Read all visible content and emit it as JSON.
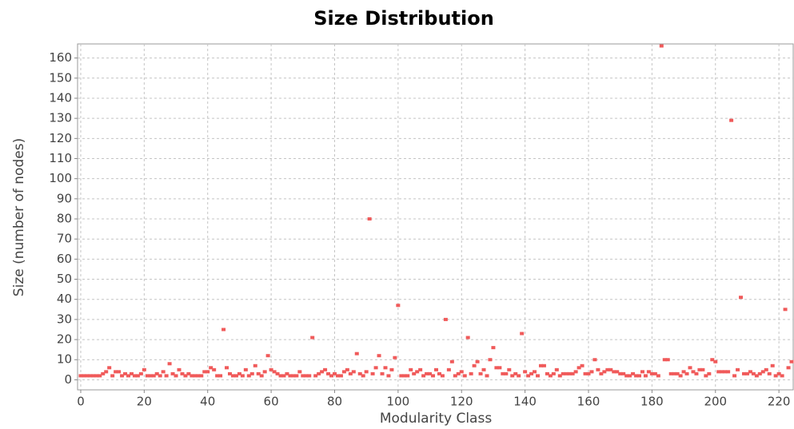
{
  "chart_data": {
    "type": "scatter",
    "title": "Size Distribution",
    "x_label": "Modularity Class",
    "y_label": "Size (number of nodes)",
    "xlim": [
      -1,
      224.5
    ],
    "ylim": [
      -5,
      167
    ],
    "xticks": [
      0,
      20,
      40,
      60,
      80,
      100,
      120,
      140,
      160,
      180,
      200,
      220
    ],
    "yticks": [
      0,
      10,
      20,
      30,
      40,
      50,
      60,
      70,
      80,
      90,
      100,
      110,
      120,
      130,
      140,
      150,
      160
    ],
    "grid": true,
    "color": "#f05a5a",
    "x": [
      0,
      1,
      2,
      3,
      4,
      5,
      6,
      7,
      8,
      9,
      10,
      11,
      12,
      13,
      14,
      15,
      16,
      17,
      18,
      19,
      20,
      21,
      22,
      23,
      24,
      25,
      26,
      27,
      28,
      29,
      30,
      31,
      32,
      33,
      34,
      35,
      36,
      37,
      38,
      39,
      40,
      41,
      42,
      43,
      44,
      45,
      46,
      47,
      48,
      49,
      50,
      51,
      52,
      53,
      54,
      55,
      56,
      57,
      58,
      59,
      60,
      61,
      62,
      63,
      64,
      65,
      66,
      67,
      68,
      69,
      70,
      71,
      72,
      73,
      74,
      75,
      76,
      77,
      78,
      79,
      80,
      81,
      82,
      83,
      84,
      85,
      86,
      87,
      88,
      89,
      90,
      91,
      92,
      93,
      94,
      95,
      96,
      97,
      98,
      99,
      100,
      101,
      102,
      103,
      104,
      105,
      106,
      107,
      108,
      109,
      110,
      111,
      112,
      113,
      114,
      115,
      116,
      117,
      118,
      119,
      120,
      121,
      122,
      123,
      124,
      125,
      126,
      127,
      128,
      129,
      130,
      131,
      132,
      133,
      134,
      135,
      136,
      137,
      138,
      139,
      140,
      141,
      142,
      143,
      144,
      145,
      146,
      147,
      148,
      149,
      150,
      151,
      152,
      153,
      154,
      155,
      156,
      157,
      158,
      159,
      160,
      161,
      162,
      163,
      164,
      165,
      166,
      167,
      168,
      169,
      170,
      171,
      172,
      173,
      174,
      175,
      176,
      177,
      178,
      179,
      180,
      181,
      182,
      183,
      184,
      185,
      186,
      187,
      188,
      189,
      190,
      191,
      192,
      193,
      194,
      195,
      196,
      197,
      198,
      199,
      200,
      201,
      202,
      203,
      204,
      205,
      206,
      207,
      208,
      209,
      210,
      211,
      212,
      213,
      214,
      215,
      216,
      217,
      218,
      219,
      220,
      221,
      222,
      223,
      224
    ],
    "values": [
      2,
      2,
      2,
      2,
      2,
      2,
      2,
      3,
      4,
      6,
      2,
      4,
      4,
      2,
      3,
      2,
      3,
      2,
      2,
      3,
      5,
      2,
      2,
      2,
      3,
      2,
      4,
      2,
      8,
      3,
      2,
      5,
      3,
      2,
      3,
      2,
      2,
      2,
      2,
      4,
      4,
      6,
      5,
      2,
      2,
      25,
      6,
      3,
      2,
      2,
      3,
      2,
      5,
      2,
      3,
      7,
      3,
      2,
      4,
      12,
      5,
      4,
      3,
      2,
      2,
      3,
      2,
      2,
      2,
      4,
      2,
      2,
      2,
      21,
      2,
      3,
      4,
      5,
      3,
      2,
      3,
      2,
      2,
      4,
      5,
      3,
      4,
      13,
      3,
      2,
      4,
      80,
      3,
      6,
      12,
      3,
      6,
      2,
      5,
      11,
      37,
      2,
      2,
      2,
      5,
      3,
      4,
      5,
      2,
      3,
      3,
      2,
      5,
      3,
      2,
      30,
      5,
      9,
      2,
      3,
      4,
      2,
      21,
      3,
      7,
      9,
      3,
      5,
      2,
      10,
      16,
      6,
      6,
      3,
      3,
      5,
      2,
      3,
      2,
      23,
      4,
      2,
      3,
      4,
      2,
      7,
      7,
      3,
      2,
      3,
      5,
      2,
      3,
      3,
      3,
      3,
      4,
      6,
      7,
      3,
      3,
      4,
      10,
      5,
      3,
      4,
      5,
      5,
      4,
      4,
      3,
      3,
      2,
      2,
      3,
      2,
      2,
      4,
      2,
      4,
      3,
      3,
      2,
      166,
      10,
      10,
      3,
      3,
      3,
      2,
      4,
      3,
      6,
      4,
      3,
      5,
      5,
      2,
      3,
      10,
      9,
      4,
      4,
      4,
      4,
      129,
      2,
      5,
      41,
      3,
      3,
      4,
      3,
      2,
      3,
      4,
      5,
      3,
      7,
      2,
      3,
      2,
      35,
      6,
      9
    ]
  }
}
